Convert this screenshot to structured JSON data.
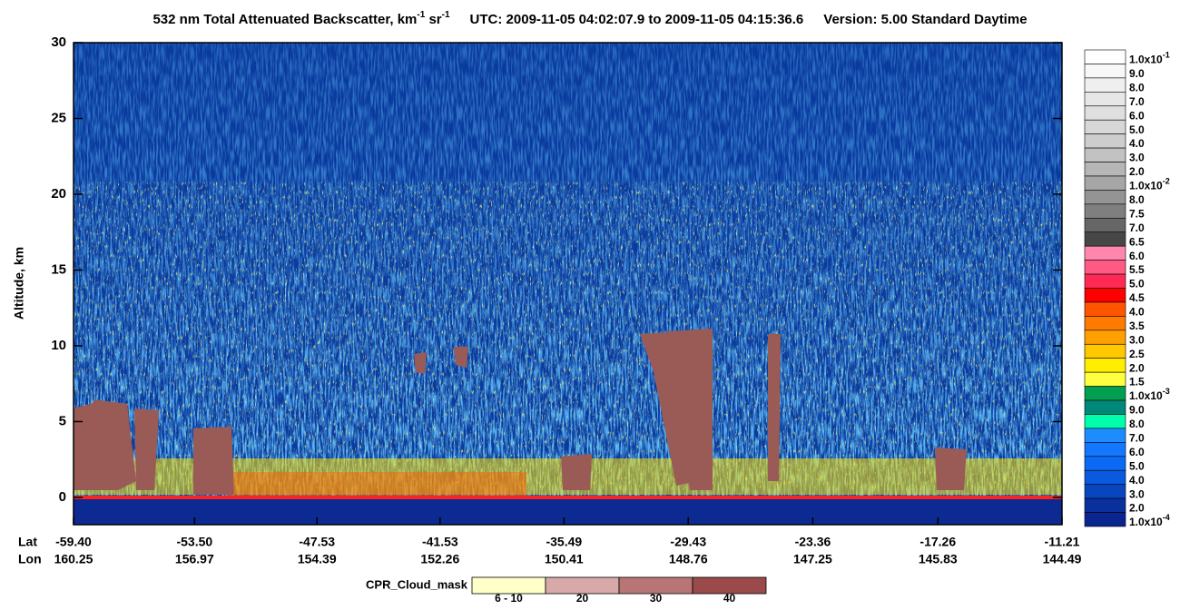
{
  "chart_data": {
    "type": "heatmap",
    "title": {
      "name": "532 nm Total Attenuated Backscatter, km",
      "unit_exp": "-1",
      "unit2": " sr",
      "unit2_exp": "-1",
      "time": "UTC:  2009-11-05 04:02:07.9  to  2009-11-05 04:15:36.6",
      "version": "Version: 5.00  Standard  Daytime"
    },
    "y_label": "Altitude, km",
    "ylim": [
      -1.8,
      30
    ],
    "yticks": [
      0,
      5,
      10,
      15,
      20,
      25,
      30
    ],
    "x_row_labels": [
      "Lat",
      "Lon"
    ],
    "xlim": [
      -59.4,
      -11.21
    ],
    "xticks": [
      {
        "value": -59.4,
        "label": "-59.40"
      },
      {
        "value": -53.5,
        "label": "-53.50"
      },
      -47.53,
      -41.53,
      -35.49,
      -29.43,
      -23.36,
      -17.26,
      -11.21
    ],
    "lon": [
      160.25,
      156.97,
      154.39,
      152.26,
      150.41,
      148.76,
      147.25,
      145.83,
      144.49
    ],
    "colorbar": [
      {
        "value": 0.1,
        "label": "1.0x10",
        "exp": "-1",
        "color": "#ffffff"
      },
      {
        "value": 0.09,
        "label": "9.0",
        "color": "#f7f7f7"
      },
      {
        "value": 0.08,
        "label": "8.0",
        "color": "#efefef"
      },
      {
        "value": 0.07,
        "label": "7.0",
        "color": "#e7e7e7"
      },
      {
        "value": 0.06,
        "label": "6.0",
        "color": "#dfdfdf"
      },
      {
        "value": 0.05,
        "label": "5.0",
        "color": "#d7d7d7"
      },
      {
        "value": 0.04,
        "label": "4.0",
        "color": "#cdcdcd"
      },
      {
        "value": 0.03,
        "label": "3.0",
        "color": "#c2c2c2"
      },
      {
        "value": 0.02,
        "label": "2.0",
        "color": "#b6b6b6"
      },
      {
        "value": 0.01,
        "label": "1.0x10",
        "exp": "-2",
        "color": "#a6a6a6"
      },
      {
        "value": 0.008,
        "label": "8.0",
        "color": "#949494"
      },
      {
        "value": 0.0075,
        "label": "7.5",
        "color": "#7f7f7f"
      },
      {
        "value": 0.007,
        "label": "7.0",
        "color": "#666666"
      },
      {
        "value": 0.0065,
        "label": "6.5",
        "color": "#474747"
      },
      {
        "value": 0.006,
        "label": "6.0",
        "color": "#ff86ac"
      },
      {
        "value": 0.0055,
        "label": "5.5",
        "color": "#ff5a84"
      },
      {
        "value": 0.005,
        "label": "5.0",
        "color": "#ff2a54"
      },
      {
        "value": 0.0045,
        "label": "4.5",
        "color": "#ff0000"
      },
      {
        "value": 0.004,
        "label": "4.0",
        "color": "#ff5500"
      },
      {
        "value": 0.0035,
        "label": "3.5",
        "color": "#ff7a00"
      },
      {
        "value": 0.003,
        "label": "3.0",
        "color": "#ffa000"
      },
      {
        "value": 0.0025,
        "label": "2.5",
        "color": "#ffc800"
      },
      {
        "value": 0.002,
        "label": "2.0",
        "color": "#ffee00"
      },
      {
        "value": 0.0015,
        "label": "1.5",
        "color": "#ffff40"
      },
      {
        "value": 0.001,
        "label": "1.0x10",
        "exp": "-3",
        "color": "#00a050"
      },
      {
        "value": 0.0009,
        "label": "9.0",
        "color": "#00887a"
      },
      {
        "value": 0.0008,
        "label": "8.0",
        "color": "#00ffaa"
      },
      {
        "value": 0.0007,
        "label": "7.0",
        "color": "#1e8cff"
      },
      {
        "value": 0.0006,
        "label": "6.0",
        "color": "#1478ff"
      },
      {
        "value": 0.0005,
        "label": "5.0",
        "color": "#0a6af5"
      },
      {
        "value": 0.0004,
        "label": "4.0",
        "color": "#0a5ae0"
      },
      {
        "value": 0.0003,
        "label": "3.0",
        "color": "#0846c0"
      },
      {
        "value": 0.0002,
        "label": "2.0",
        "color": "#0a309e"
      },
      {
        "value": 0.0001,
        "label": "1.0x10",
        "exp": "-4",
        "color": "#0a2490"
      }
    ],
    "cloud_mask": {
      "title": "CPR_Cloud_mask",
      "levels": [
        {
          "label": "6 - 10",
          "color": "#ffffc8"
        },
        {
          "label": "20",
          "color": "#d7a9a9"
        },
        {
          "label": "30",
          "color": "#b87575"
        },
        {
          "label": "40",
          "color": "#9a4a4a"
        }
      ]
    }
  }
}
